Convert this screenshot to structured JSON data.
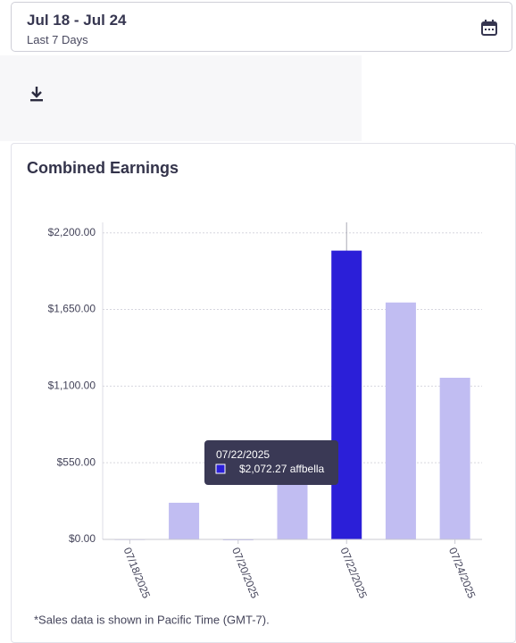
{
  "date_picker": {
    "range": "Jul 18 - Jul 24",
    "preset": "Last 7 Days"
  },
  "card": {
    "footnote": "*Sales data is shown in Pacific Time (GMT-7)."
  },
  "chart_data": {
    "type": "bar",
    "title": "Combined Earnings",
    "categories": [
      "07/18/2025",
      null,
      "07/20/2025",
      null,
      "07/22/2025",
      null,
      "07/24/2025"
    ],
    "series": [
      {
        "name": "affbella",
        "values": [
          2,
          263,
          0,
          430,
          2072.27,
          1700,
          1160
        ],
        "value_labels": [
          null,
          null,
          null,
          null,
          "$2,072.27",
          null,
          null
        ],
        "colors": [
          "#c1bdf2",
          "#c1bdf2",
          "#c1bdf2",
          "#c1bdf2",
          "#2b1fd8",
          "#c1bdf2",
          "#c1bdf2"
        ]
      }
    ],
    "ylim": [
      0,
      2275
    ],
    "yticks": [
      {
        "value": 0,
        "label": "$0.00"
      },
      {
        "value": 550,
        "label": "$550.00"
      },
      {
        "value": 1100,
        "label": "$1,100.00"
      },
      {
        "value": 1650,
        "label": "$1,650.00"
      },
      {
        "value": 2200,
        "label": "$2,200.00"
      }
    ],
    "grid": true
  }
}
